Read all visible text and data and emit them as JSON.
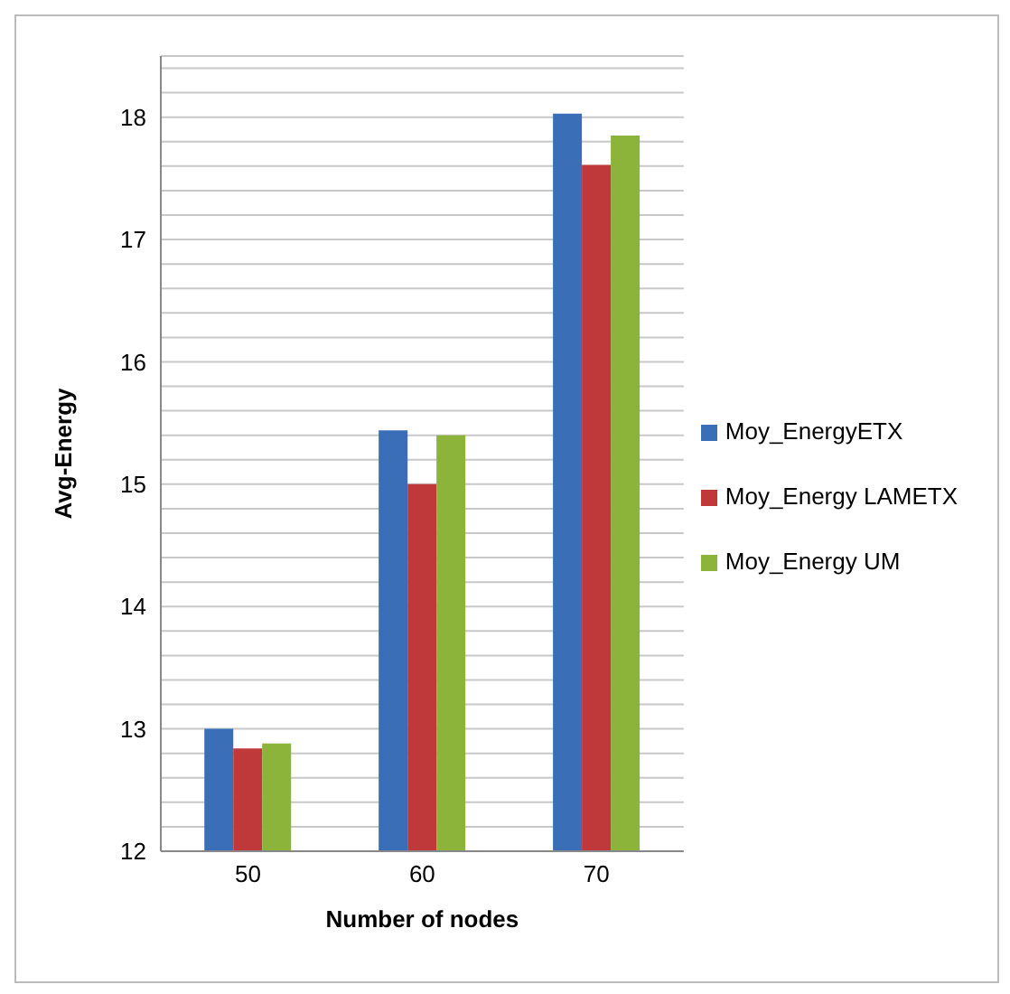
{
  "chart_data": {
    "type": "bar",
    "xlabel": "Number of nodes",
    "ylabel": "Avg-Energy",
    "categories": [
      "50",
      "60",
      "70"
    ],
    "series": [
      {
        "name": "Moy_EnergyETX",
        "color": "#3a6fb8",
        "values": [
          13.0,
          15.44,
          18.03
        ]
      },
      {
        "name": "Moy_Energy LAMETX",
        "color": "#c0393a",
        "values": [
          12.84,
          15.0,
          17.61
        ]
      },
      {
        "name": "Moy_Energy UM",
        "color": "#8db43a",
        "values": [
          12.88,
          15.4,
          17.85
        ]
      }
    ],
    "ylim": [
      12,
      18.5
    ],
    "yticks": [
      12,
      {
        "value": 12.2,
        "label": null
      },
      {
        "value": 12.4,
        "label": null
      },
      {
        "value": 12.6,
        "label": null
      },
      {
        "value": 12.8,
        "label": null
      },
      13,
      {
        "value": 13.2,
        "label": null
      },
      {
        "value": 13.4,
        "label": null
      },
      {
        "value": 13.6,
        "label": null
      },
      {
        "value": 13.8,
        "label": null
      },
      14,
      {
        "value": 14.2,
        "label": null
      },
      {
        "value": 14.4,
        "label": null
      },
      {
        "value": 14.6,
        "label": null
      },
      {
        "value": 14.8,
        "label": null
      },
      15,
      {
        "value": 15.2,
        "label": null
      },
      {
        "value": 15.4,
        "label": null
      },
      {
        "value": 15.6,
        "label": null
      },
      {
        "value": 15.8,
        "label": null
      },
      16,
      {
        "value": 16.2,
        "label": null
      },
      {
        "value": 16.4,
        "label": null
      },
      {
        "value": 16.6,
        "label": null
      },
      {
        "value": 16.8,
        "label": null
      },
      17,
      {
        "value": 17.2,
        "label": null
      },
      {
        "value": 17.4,
        "label": null
      },
      {
        "value": 17.6,
        "label": null
      },
      {
        "value": 17.8,
        "label": null
      },
      18,
      {
        "value": 18.2,
        "label": null
      },
      {
        "value": 18.4,
        "label": null
      }
    ],
    "grid": "y",
    "legend": "right"
  }
}
